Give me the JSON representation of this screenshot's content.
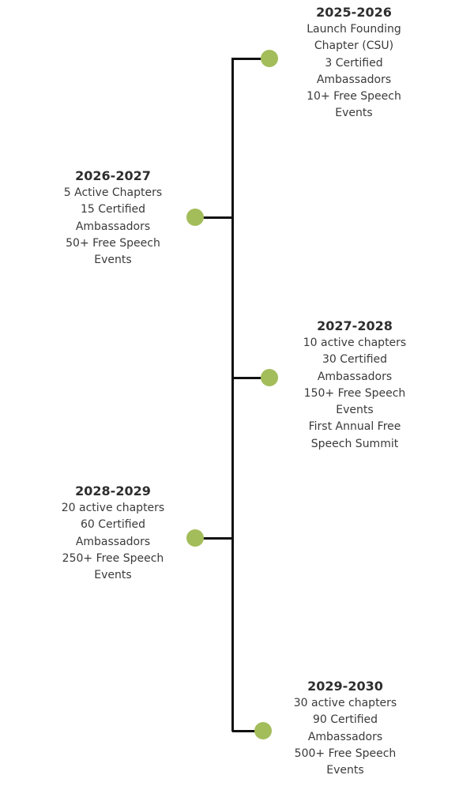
{
  "milestones": [
    {
      "year": "2025-2026",
      "items": [
        "Launch Founding",
        "Chapter (CSU)",
        "3 Certified",
        "Ambassadors",
        "10+ Free Speech",
        "Events"
      ]
    },
    {
      "year": "2026-2027",
      "items": [
        "5 Active Chapters",
        "15 Certified",
        "Ambassadors",
        "50+ Free Speech",
        "Events"
      ]
    },
    {
      "year": "2027-2028",
      "items": [
        "10 active chapters",
        "30 Certified",
        "Ambassadors",
        "150+ Free Speech",
        "Events",
        "First Annual Free",
        "Speech Summit"
      ]
    },
    {
      "year": "2028-2029",
      "items": [
        "20 active chapters",
        "60 Certified",
        "Ambassadors",
        "250+ Free Speech",
        "Events"
      ]
    },
    {
      "year": "2029-2030",
      "items": [
        "30 active chapters",
        "90 Certified",
        "Ambassadors",
        "500+ Free Speech",
        "Events"
      ]
    }
  ],
  "colors": {
    "dot": "#a3bd5a",
    "line": "#111111"
  }
}
